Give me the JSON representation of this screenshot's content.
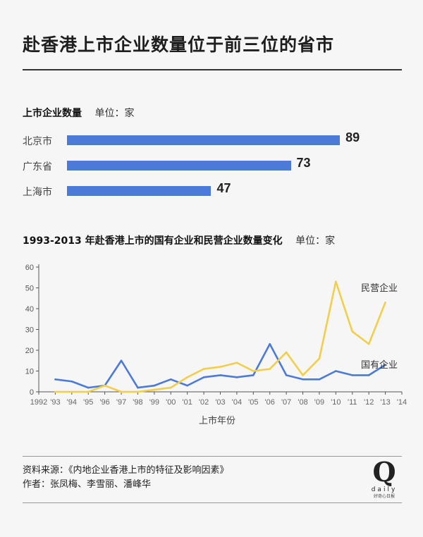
{
  "title": "赴香港上市企业数量位于前三位的省市",
  "bar_section": {
    "heading": "上市企业数量",
    "unit": "单位：家"
  },
  "line_section": {
    "heading": "1993-2013 年赴香港上市的国有企业和民营企业数量变化",
    "unit": "单位：家"
  },
  "chart_data": [
    {
      "type": "bar",
      "orientation": "horizontal",
      "categories": [
        "北京市",
        "广东省",
        "上海市"
      ],
      "values": [
        89,
        73,
        47
      ],
      "xlim": [
        0,
        100
      ]
    },
    {
      "type": "line",
      "x": [
        1993,
        1994,
        1995,
        1996,
        1997,
        1998,
        1999,
        2000,
        2001,
        2002,
        2003,
        2004,
        2005,
        2006,
        2007,
        2008,
        2009,
        2010,
        2011,
        2012,
        2013
      ],
      "xtick_labels": [
        "1992",
        "'93",
        "'94",
        "'95",
        "'96",
        "'97",
        "'98",
        "'99",
        "'00",
        "'01",
        "'02",
        "'03",
        "'04",
        "'05",
        "'06",
        "'07",
        "'08",
        "'09",
        "'10",
        "'11",
        "'12",
        "'13",
        "'14"
      ],
      "xlim": [
        1992,
        2014
      ],
      "ylim": [
        0,
        60
      ],
      "yticks": [
        0,
        10,
        20,
        30,
        40,
        50,
        60
      ],
      "xlabel": "上市年份",
      "grid": false,
      "series": [
        {
          "name": "国有企业",
          "color": "#4c7ad9",
          "values": [
            6,
            5,
            2,
            3,
            15,
            2,
            3,
            6,
            3,
            7,
            8,
            7,
            8,
            23,
            8,
            6,
            6,
            10,
            8,
            8,
            13
          ]
        },
        {
          "name": "民营企业",
          "color": "#f2cf4a",
          "values": [
            0,
            0,
            0,
            3,
            0,
            0,
            1,
            2,
            7,
            11,
            12,
            14,
            10,
            11,
            19,
            8,
            16,
            53,
            29,
            23,
            43
          ]
        }
      ]
    }
  ],
  "footer": {
    "source": "资料来源：《内地企业香港上市的特征及影响因素》",
    "authors": "作者：张凤梅、李雪丽、潘峰华"
  },
  "logo": {
    "letter": "Q",
    "word": "daily",
    "brand": "好奇心日报"
  }
}
